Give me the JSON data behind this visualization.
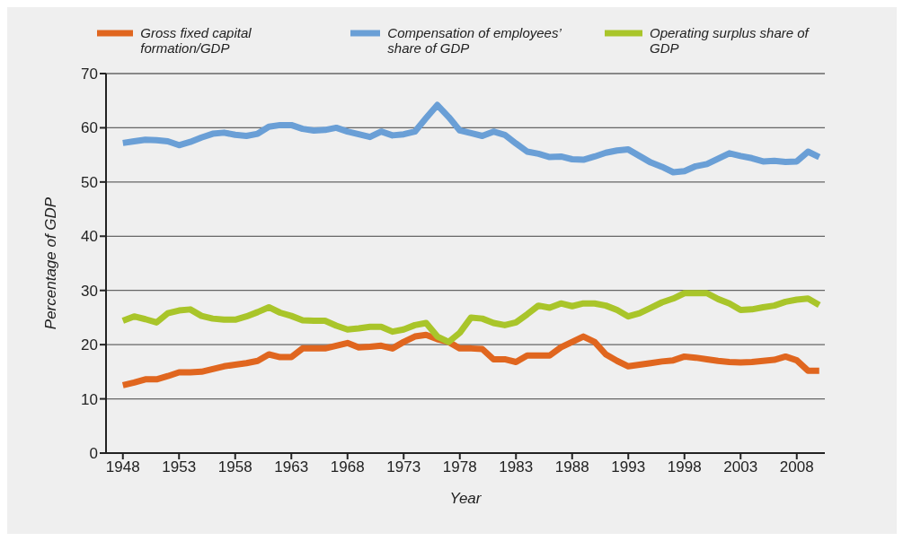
{
  "chart_data": {
    "type": "line",
    "xlabel": "Year",
    "ylabel": "Percentage of GDP",
    "x": [
      1948,
      1949,
      1950,
      1951,
      1952,
      1953,
      1954,
      1955,
      1956,
      1957,
      1958,
      1959,
      1960,
      1961,
      1962,
      1963,
      1964,
      1965,
      1966,
      1967,
      1968,
      1969,
      1970,
      1971,
      1972,
      1973,
      1974,
      1975,
      1976,
      1977,
      1978,
      1979,
      1980,
      1981,
      1982,
      1983,
      1984,
      1985,
      1986,
      1987,
      1988,
      1989,
      1990,
      1991,
      1992,
      1993,
      1994,
      1995,
      1996,
      1997,
      1998,
      1999,
      2000,
      2001,
      2002,
      2003,
      2004,
      2005,
      2006,
      2007,
      2008,
      2009,
      2010
    ],
    "series": [
      {
        "name": "Gross fixed capital formation/GDP",
        "color": "#e0661f",
        "values": [
          12.5,
          13.0,
          13.6,
          13.6,
          14.2,
          14.9,
          14.9,
          15.0,
          15.5,
          16.0,
          16.3,
          16.6,
          17.0,
          18.2,
          17.7,
          17.7,
          19.3,
          19.3,
          19.3,
          19.8,
          20.3,
          19.5,
          19.6,
          19.8,
          19.3,
          20.5,
          21.5,
          21.8,
          21.0,
          20.5,
          19.3,
          19.3,
          19.2,
          17.3,
          17.3,
          16.8,
          18.0,
          18.0,
          18.0,
          19.5,
          20.5,
          21.5,
          20.5,
          18.2,
          17.0,
          16.0,
          16.3,
          16.6,
          16.9,
          17.1,
          17.8,
          17.6,
          17.3,
          17.0,
          16.8,
          16.7,
          16.8,
          17.0,
          17.2,
          17.8,
          17.1,
          15.2,
          15.2
        ]
      },
      {
        "name": "Compensation of employees’ share of GDP",
        "color": "#6a9fd6",
        "values": [
          57.2,
          57.5,
          57.8,
          57.7,
          57.5,
          56.8,
          57.4,
          58.2,
          58.9,
          59.1,
          58.7,
          58.5,
          58.9,
          60.2,
          60.5,
          60.5,
          59.8,
          59.5,
          59.6,
          60.0,
          59.3,
          58.8,
          58.3,
          59.3,
          58.6,
          58.8,
          59.3,
          61.8,
          64.2,
          62.0,
          59.5,
          59.0,
          58.5,
          59.3,
          58.7,
          57.1,
          55.6,
          55.2,
          54.6,
          54.7,
          54.2,
          54.1,
          54.7,
          55.4,
          55.8,
          56.0,
          54.8,
          53.6,
          52.8,
          51.8,
          52.0,
          52.9,
          53.3,
          54.3,
          55.3,
          54.8,
          54.4,
          53.8,
          53.9,
          53.7,
          53.8,
          55.6,
          54.6
        ]
      },
      {
        "name": "Operating surplus share of GDP",
        "color": "#a9c52a",
        "values": [
          24.4,
          25.2,
          24.7,
          24.1,
          25.8,
          26.3,
          26.5,
          25.3,
          24.8,
          24.6,
          24.6,
          25.2,
          26.0,
          26.9,
          25.9,
          25.3,
          24.5,
          24.4,
          24.4,
          23.5,
          22.8,
          23.0,
          23.3,
          23.3,
          22.4,
          22.8,
          23.6,
          24.0,
          21.5,
          20.5,
          22.2,
          25.0,
          24.8,
          24.0,
          23.6,
          24.1,
          25.6,
          27.2,
          26.8,
          27.6,
          27.1,
          27.6,
          27.6,
          27.2,
          26.4,
          25.2,
          25.8,
          26.8,
          27.8,
          28.5,
          29.5,
          29.5,
          29.5,
          28.4,
          27.6,
          26.4,
          26.5,
          26.9,
          27.2,
          27.9,
          28.3,
          28.5,
          27.3
        ]
      }
    ],
    "xlim": [
      1946.5,
      2010.5
    ],
    "xticks": [
      1948,
      1953,
      1958,
      1963,
      1968,
      1973,
      1978,
      1983,
      1988,
      1993,
      1998,
      2003,
      2008
    ],
    "ylim": [
      0,
      70
    ],
    "yticks": [
      0,
      10,
      20,
      30,
      40,
      50,
      60,
      70
    ],
    "grid": "y",
    "legend": "top",
    "marker": "none",
    "line_style": "solid"
  }
}
